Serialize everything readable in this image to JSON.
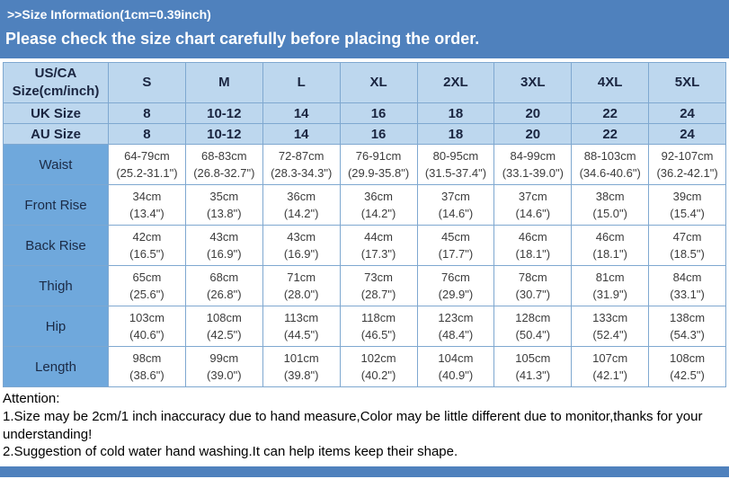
{
  "banner": {
    "title": ">>Size Information(1cm=0.39inch)",
    "subtitle": "Please check the size chart carefully before placing the order."
  },
  "colors": {
    "banner_bg": "#4f81bd",
    "header_cell_bg": "#bdd7ee",
    "label_cell_bg": "#6fa8dc",
    "table_border": "#7fa8d0",
    "banner_text": "#ffffff"
  },
  "size_table": {
    "corner_label": "US/CA Size(cm/inch)",
    "sizes": [
      "S",
      "M",
      "L",
      "XL",
      "2XL",
      "3XL",
      "4XL",
      "5XL"
    ],
    "region_rows": [
      {
        "label": "UK Size",
        "values": [
          "8",
          "10-12",
          "14",
          "16",
          "18",
          "20",
          "22",
          "24"
        ]
      },
      {
        "label": "AU Size",
        "values": [
          "8",
          "10-12",
          "14",
          "16",
          "18",
          "20",
          "22",
          "24"
        ]
      }
    ],
    "measurements": [
      {
        "label": "Waist",
        "cells": [
          [
            "64-79cm",
            "(25.2-31.1\")"
          ],
          [
            "68-83cm",
            "(26.8-32.7\")"
          ],
          [
            "72-87cm",
            "(28.3-34.3\")"
          ],
          [
            "76-91cm",
            "(29.9-35.8\")"
          ],
          [
            "80-95cm",
            "(31.5-37.4\")"
          ],
          [
            "84-99cm",
            "(33.1-39.0\")"
          ],
          [
            "88-103cm",
            "(34.6-40.6\")"
          ],
          [
            "92-107cm",
            "(36.2-42.1\")"
          ]
        ]
      },
      {
        "label": "Front Rise",
        "cells": [
          [
            "34cm",
            "(13.4\")"
          ],
          [
            "35cm",
            "(13.8\")"
          ],
          [
            "36cm",
            "(14.2\")"
          ],
          [
            "36cm",
            "(14.2\")"
          ],
          [
            "37cm",
            "(14.6\")"
          ],
          [
            "37cm",
            "(14.6\")"
          ],
          [
            "38cm",
            "(15.0\")"
          ],
          [
            "39cm",
            "(15.4\")"
          ]
        ]
      },
      {
        "label": "Back Rise",
        "cells": [
          [
            "42cm",
            "(16.5\")"
          ],
          [
            "43cm",
            "(16.9\")"
          ],
          [
            "43cm",
            "(16.9\")"
          ],
          [
            "44cm",
            "(17.3\")"
          ],
          [
            "45cm",
            "(17.7\")"
          ],
          [
            "46cm",
            "(18.1\")"
          ],
          [
            "46cm",
            "(18.1\")"
          ],
          [
            "47cm",
            "(18.5\")"
          ]
        ]
      },
      {
        "label": "Thigh",
        "cells": [
          [
            "65cm",
            "(25.6\")"
          ],
          [
            "68cm",
            "(26.8\")"
          ],
          [
            "71cm",
            "(28.0\")"
          ],
          [
            "73cm",
            "(28.7\")"
          ],
          [
            "76cm",
            "(29.9\")"
          ],
          [
            "78cm",
            "(30.7\")"
          ],
          [
            "81cm",
            "(31.9\")"
          ],
          [
            "84cm",
            "(33.1\")"
          ]
        ]
      },
      {
        "label": "Hip",
        "cells": [
          [
            "103cm",
            "(40.6\")"
          ],
          [
            "108cm",
            "(42.5\")"
          ],
          [
            "113cm",
            "(44.5\")"
          ],
          [
            "118cm",
            "(46.5\")"
          ],
          [
            "123cm",
            "(48.4\")"
          ],
          [
            "128cm",
            "(50.4\")"
          ],
          [
            "133cm",
            "(52.4\")"
          ],
          [
            "138cm",
            "(54.3\")"
          ]
        ]
      },
      {
        "label": "Length",
        "cells": [
          [
            "98cm",
            "(38.6\")"
          ],
          [
            "99cm",
            "(39.0\")"
          ],
          [
            "101cm",
            "(39.8\")"
          ],
          [
            "102cm",
            "(40.2\")"
          ],
          [
            "104cm",
            "(40.9\")"
          ],
          [
            "105cm",
            "(41.3\")"
          ],
          [
            "107cm",
            "(42.1\")"
          ],
          [
            "108cm",
            "(42.5\")"
          ]
        ]
      }
    ]
  },
  "attention": {
    "heading": "Attention:",
    "notes": [
      "1.Size may be 2cm/1 inch inaccuracy due to hand measure,Color may be little different due to monitor,thanks for your understanding!",
      "2.Suggestion of cold water hand washing.It can help items keep their shape."
    ]
  }
}
